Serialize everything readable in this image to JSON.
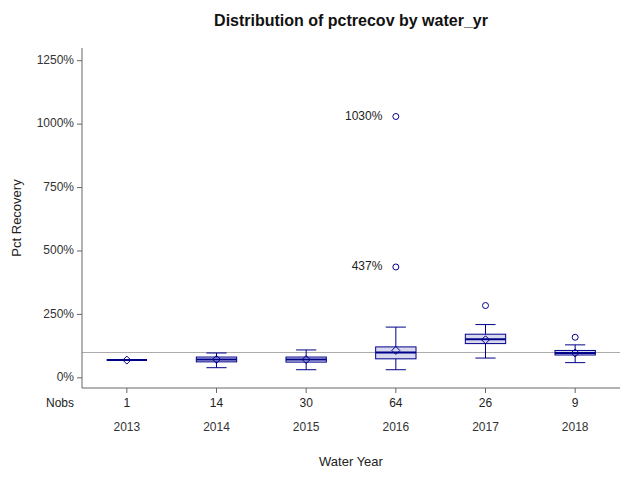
{
  "chart_data": {
    "type": "box",
    "title": "Distribution of pctrecov by water_yr",
    "x_label": "Water Year",
    "y_label": "Pct Recovery",
    "categories": [
      "2013",
      "2014",
      "2015",
      "2016",
      "2017",
      "2018"
    ],
    "boxes": [
      {
        "q1": 0.7,
        "median": 0.7,
        "q3": 0.7,
        "mean": 0.7,
        "whislo": 0.7,
        "whishi": 0.7,
        "fliers": []
      },
      {
        "q1": 0.63,
        "median": 0.72,
        "q3": 0.82,
        "mean": 0.73,
        "whislo": 0.4,
        "whishi": 0.98,
        "fliers": []
      },
      {
        "q1": 0.62,
        "median": 0.72,
        "q3": 0.82,
        "mean": 0.72,
        "whislo": 0.32,
        "whishi": 1.1,
        "fliers": []
      },
      {
        "q1": 0.75,
        "median": 1.0,
        "q3": 1.22,
        "mean": 1.08,
        "whislo": 0.32,
        "whishi": 2.0,
        "fliers": [
          4.37,
          10.3
        ]
      },
      {
        "q1": 1.35,
        "median": 1.52,
        "q3": 1.72,
        "mean": 1.5,
        "whislo": 0.78,
        "whishi": 2.1,
        "fliers": [
          2.85
        ]
      },
      {
        "q1": 0.9,
        "median": 0.98,
        "q3": 1.08,
        "mean": 0.98,
        "whislo": 0.6,
        "whishi": 1.3,
        "fliers": [
          1.6
        ]
      }
    ],
    "nobs_label": "Nobs",
    "nobs": [
      1,
      14,
      30,
      64,
      26,
      9
    ],
    "annotations": [
      {
        "category": "2016",
        "value": 4.37,
        "label": "437%"
      },
      {
        "category": "2016",
        "value": 10.3,
        "label": "1030%"
      }
    ],
    "reference_line": 1.0,
    "ylim": [
      -0.4,
      13.0
    ],
    "yticks": [
      {
        "value": 0.0,
        "label": "0%"
      },
      {
        "value": 2.5,
        "label": "250%"
      },
      {
        "value": 5.0,
        "label": "500%"
      },
      {
        "value": 7.5,
        "label": "750%"
      },
      {
        "value": 10.0,
        "label": "1000%"
      },
      {
        "value": 12.5,
        "label": "1250%"
      }
    ],
    "color": "#00008b",
    "marker": "diamond",
    "grid": false
  }
}
